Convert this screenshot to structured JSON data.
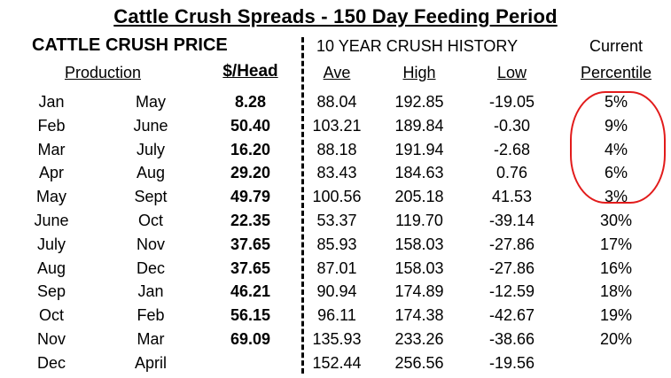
{
  "title": "Cattle Crush Spreads - 150 Day Feeding Period",
  "headers": {
    "crush_price": "CATTLE CRUSH PRICE",
    "history": "10 YEAR CRUSH HISTORY",
    "current": "Current",
    "production": "Production",
    "per_head": "$/Head",
    "ave": "Ave",
    "high": "High",
    "low": "Low",
    "percentile": "Percentile"
  },
  "rows": [
    {
      "placement": "Jan",
      "marketing": "May",
      "per_head": "8.28",
      "ave": "88.04",
      "high": "192.85",
      "low": "-19.05",
      "percentile": "5%"
    },
    {
      "placement": "Feb",
      "marketing": "June",
      "per_head": "50.40",
      "ave": "103.21",
      "high": "189.84",
      "low": "-0.30",
      "percentile": "9%"
    },
    {
      "placement": "Mar",
      "marketing": "July",
      "per_head": "16.20",
      "ave": "88.18",
      "high": "191.94",
      "low": "-2.68",
      "percentile": "4%"
    },
    {
      "placement": "Apr",
      "marketing": "Aug",
      "per_head": "29.20",
      "ave": "83.43",
      "high": "184.63",
      "low": "0.76",
      "percentile": "6%"
    },
    {
      "placement": "May",
      "marketing": "Sept",
      "per_head": "49.79",
      "ave": "100.56",
      "high": "205.18",
      "low": "41.53",
      "percentile": "3%"
    },
    {
      "placement": "June",
      "marketing": "Oct",
      "per_head": "22.35",
      "ave": "53.37",
      "high": "119.70",
      "low": "-39.14",
      "percentile": "30%"
    },
    {
      "placement": "July",
      "marketing": "Nov",
      "per_head": "37.65",
      "ave": "85.93",
      "high": "158.03",
      "low": "-27.86",
      "percentile": "17%"
    },
    {
      "placement": "Aug",
      "marketing": "Dec",
      "per_head": "37.65",
      "ave": "87.01",
      "high": "158.03",
      "low": "-27.86",
      "percentile": "16%"
    },
    {
      "placement": "Sep",
      "marketing": "Jan",
      "per_head": "46.21",
      "ave": "90.94",
      "high": "174.89",
      "low": "-12.59",
      "percentile": "18%"
    },
    {
      "placement": "Oct",
      "marketing": "Feb",
      "per_head": "56.15",
      "ave": "96.11",
      "high": "174.38",
      "low": "-42.67",
      "percentile": "19%"
    },
    {
      "placement": "Nov",
      "marketing": "Mar",
      "per_head": "69.09",
      "ave": "135.93",
      "high": "233.26",
      "low": "-38.66",
      "percentile": "20%"
    },
    {
      "placement": "Dec",
      "marketing": "April",
      "per_head": "",
      "ave": "152.44",
      "high": "256.56",
      "low": "-19.56",
      "percentile": ""
    }
  ],
  "highlight_color": "#e21b1b"
}
